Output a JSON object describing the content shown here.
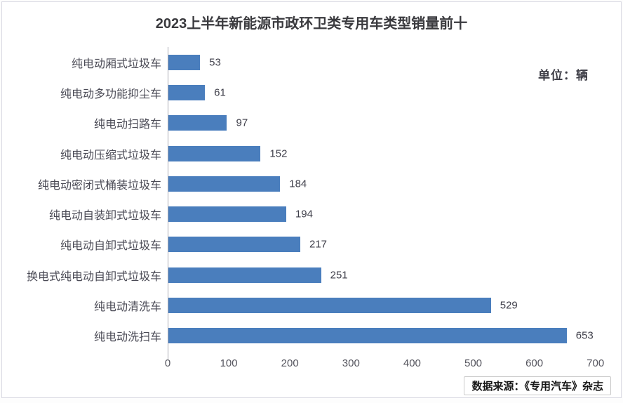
{
  "header": {
    "title": "2023上半年新能源市政环卫类专用车类型销量前十",
    "unit_label": "单位：辆"
  },
  "footer": {
    "source_label": "数据来源：《专用汽车》杂志"
  },
  "chart_data": {
    "type": "bar",
    "orientation": "horizontal",
    "title": "2023上半年新能源市政环卫类专用车类型销量前十",
    "unit": "辆",
    "categories": [
      "纯电动厢式垃圾车",
      "纯电动多功能抑尘车",
      "纯电动扫路车",
      "纯电动压缩式垃圾车",
      "纯电动密闭式桶装垃圾车",
      "纯电动自装卸式垃圾车",
      "纯电动自卸式垃圾车",
      "换电式纯电动自卸式垃圾车",
      "纯电动清洗车",
      "纯电动洗扫车"
    ],
    "values": [
      53,
      61,
      97,
      152,
      184,
      194,
      217,
      251,
      529,
      653
    ],
    "xlabel": "",
    "ylabel": "",
    "xlim": [
      0,
      700
    ],
    "x_ticks": [
      0,
      100,
      200,
      300,
      400,
      500,
      600,
      700
    ],
    "grid": false,
    "legend": false,
    "value_labels": true,
    "bar_color": "#4a7ebd"
  }
}
